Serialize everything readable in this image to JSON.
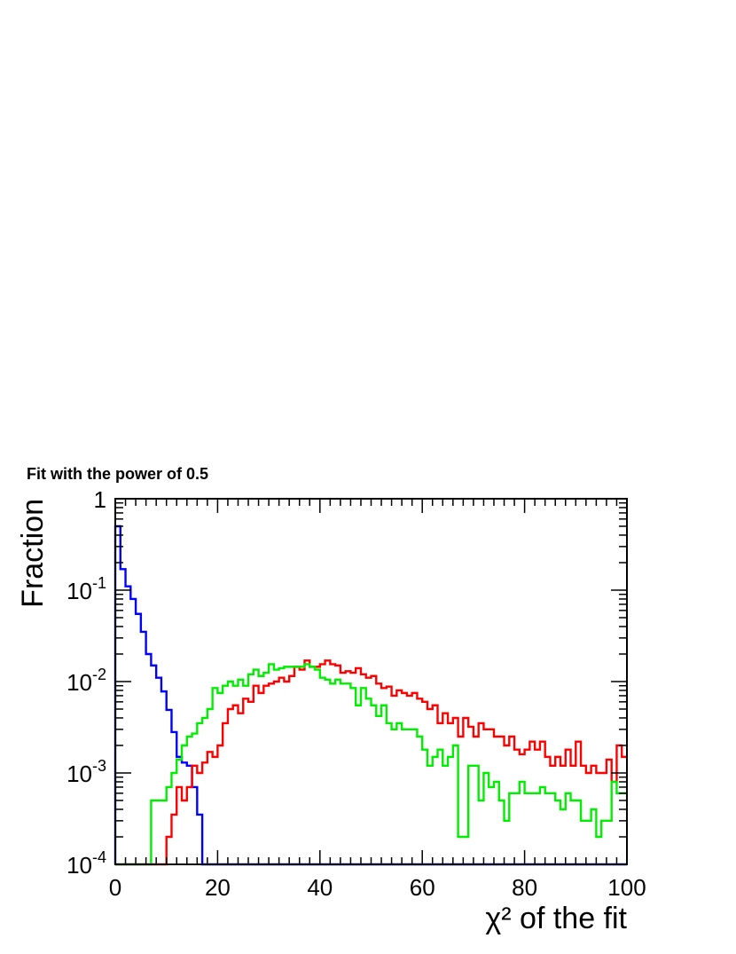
{
  "chart_data": {
    "type": "line",
    "title": "Fit with the power of 0.5",
    "xlabel": "χ² of the fit",
    "ylabel": "Fraction",
    "xlim": [
      0,
      100
    ],
    "ylim": [
      0.0001,
      1
    ],
    "yscale": "log",
    "grid": false,
    "x_ticks": [
      "0",
      "20",
      "40",
      "60",
      "80",
      "100"
    ],
    "y_ticks": [
      {
        "base": "1",
        "exp": ""
      },
      {
        "base": "10",
        "exp": "-1"
      },
      {
        "base": "10",
        "exp": "-2"
      },
      {
        "base": "10",
        "exp": "-3"
      },
      {
        "base": "10",
        "exp": "-4"
      }
    ],
    "bin_width": 1,
    "series": [
      {
        "color": "#0000ff",
        "values": [
          0.5,
          0.17,
          0.11,
          0.08,
          0.055,
          0.035,
          0.02,
          0.015,
          0.011,
          0.0078,
          0.0049,
          0.0028,
          0.0015,
          0.0013,
          0.0012,
          0.0007,
          0.00035,
          0.0001,
          0.0001,
          0.0001,
          0.0001,
          0.0001,
          0.0001,
          0.0001,
          0.0001,
          0.0001,
          0.0001,
          0.0001,
          0.0001,
          0.0001,
          0.0001,
          0.0001,
          0.0001,
          0.0001,
          0.0001,
          0.0001,
          0.0001,
          0.0001,
          0.0001,
          0.0001,
          0.0001,
          0.0001,
          0.0001,
          0.0001,
          0.0001,
          0.0001,
          0.0001,
          0.0001,
          0.0001,
          0.0001,
          0.0001,
          0.0001,
          0.0001,
          0.0001,
          0.0001,
          0.0001,
          0.0001,
          0.0001,
          0.0001,
          0.0001,
          0.0001,
          0.0001,
          0.0001,
          0.0001,
          0.0001,
          0.0001,
          0.0001,
          0.0001,
          0.0001,
          0.0001,
          0.0001,
          0.0001,
          0.0001,
          0.0001,
          0.0001,
          0.0001,
          0.0001,
          0.0001,
          0.0001,
          0.0001,
          0.0001,
          0.0001,
          0.0001,
          0.0001,
          0.0001,
          0.0001,
          0.0001,
          0.0001,
          0.0001,
          0.0001,
          0.0001,
          0.0001,
          0.0001,
          0.0001,
          0.0001,
          0.0001,
          0.0001,
          0.0001,
          0.0001,
          0.0001
        ]
      },
      {
        "color": "#ff0000",
        "values": [
          0.0001,
          0.0001,
          0.0001,
          0.0001,
          0.0001,
          0.0001,
          0.0001,
          0.0001,
          0.0001,
          0.0001,
          0.0002,
          0.00035,
          0.0007,
          0.0005,
          0.0007,
          0.0012,
          0.001,
          0.0013,
          0.0017,
          0.0015,
          0.002,
          0.0035,
          0.005,
          0.0055,
          0.0045,
          0.0065,
          0.006,
          0.009,
          0.0075,
          0.009,
          0.0095,
          0.01,
          0.011,
          0.01,
          0.0115,
          0.0145,
          0.0135,
          0.017,
          0.0145,
          0.0145,
          0.0155,
          0.017,
          0.0155,
          0.015,
          0.0125,
          0.013,
          0.0125,
          0.014,
          0.012,
          0.011,
          0.0115,
          0.0095,
          0.0085,
          0.0088,
          0.007,
          0.008,
          0.0075,
          0.007,
          0.0075,
          0.0065,
          0.006,
          0.005,
          0.0055,
          0.0035,
          0.0045,
          0.0035,
          0.004,
          0.0025,
          0.004,
          0.0032,
          0.0025,
          0.0035,
          0.003,
          0.003,
          0.0025,
          0.0025,
          0.002,
          0.0025,
          0.0018,
          0.0016,
          0.0018,
          0.0022,
          0.0018,
          0.0022,
          0.0015,
          0.0012,
          0.0015,
          0.0012,
          0.0018,
          0.0012,
          0.0022,
          0.0012,
          0.001,
          0.0012,
          0.001,
          0.001,
          0.0014,
          0.0008,
          0.002,
          0.0015
        ]
      },
      {
        "color": "#00ee00",
        "values": [
          0.0001,
          0.0001,
          0.0001,
          0.0001,
          0.0001,
          0.0001,
          0.0001,
          0.0005,
          0.0005,
          0.0005,
          0.0007,
          0.001,
          0.0014,
          0.002,
          0.0025,
          0.0027,
          0.0035,
          0.004,
          0.005,
          0.0085,
          0.0075,
          0.009,
          0.01,
          0.009,
          0.0105,
          0.009,
          0.012,
          0.0135,
          0.0115,
          0.0125,
          0.0155,
          0.0135,
          0.014,
          0.0145,
          0.0145,
          0.0145,
          0.0145,
          0.0155,
          0.0145,
          0.0135,
          0.011,
          0.0105,
          0.0095,
          0.0105,
          0.0095,
          0.0095,
          0.0085,
          0.0055,
          0.0085,
          0.0065,
          0.0055,
          0.0042,
          0.0055,
          0.0035,
          0.003,
          0.0035,
          0.003,
          0.003,
          0.003,
          0.0025,
          0.0018,
          0.0012,
          0.0015,
          0.0018,
          0.0012,
          0.0015,
          0.002,
          0.0002,
          0.0002,
          0.0012,
          0.0012,
          0.0005,
          0.001,
          0.0007,
          0.0008,
          0.0005,
          0.0003,
          0.0006,
          0.0006,
          0.0008,
          0.0006,
          0.0006,
          0.0006,
          0.0007,
          0.0006,
          0.0006,
          0.0005,
          0.0004,
          0.0006,
          0.0005,
          0.0005,
          0.0003,
          0.0003,
          0.0004,
          0.0002,
          0.0003,
          0.0003,
          0.0008,
          0.0006,
          0.0006
        ]
      }
    ]
  }
}
